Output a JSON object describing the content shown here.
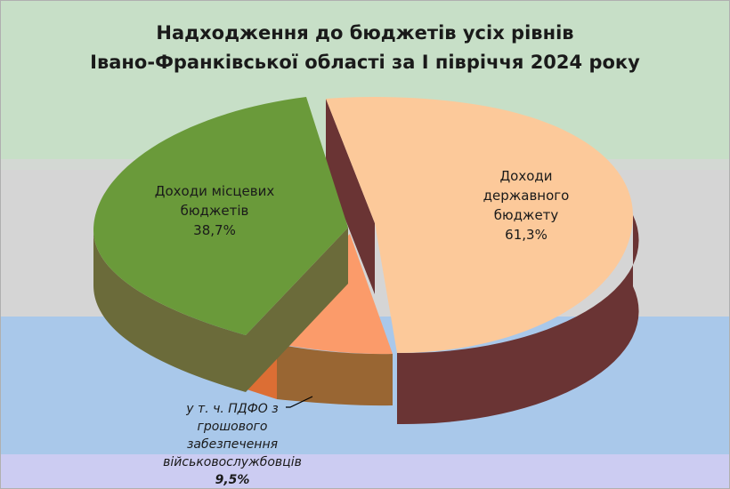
{
  "title": {
    "line1": "Надходження до бюджетів усіх рівнів",
    "line2": "Івано-Франківської області за І півріччя 2024 року"
  },
  "labels": {
    "local": {
      "line1": "Доходи місцевих",
      "line2": "бюджетів",
      "value": "38,7%"
    },
    "state": {
      "line1": "Доходи",
      "line2": "державного",
      "line3": "бюджету",
      "value": "61,3%"
    },
    "pdfo": {
      "line1": "у т. ч. ПДФО з",
      "line2": "грошового",
      "line3": "забезпечення",
      "line4": "військовослужбовців",
      "value": "9,5%"
    }
  },
  "chart_data": {
    "type": "pie",
    "title": "Надходження до бюджетів усіх рівнів Івано-Франківської області за І півріччя 2024 року",
    "slices": [
      {
        "label": "Доходи державного бюджету",
        "value": 61.3,
        "color": "#fcc99a",
        "side_color": "#6a3434"
      },
      {
        "label": "у т. ч. ПДФО з грошового забезпечення військовослужбовців",
        "value": 9.5,
        "color": "#fb9b6a",
        "side_color": "#996633"
      },
      {
        "label": "Доходи місцевих бюджетів",
        "value": 38.7,
        "color": "#6a9a3a",
        "side_color": "#6b6b3a"
      }
    ],
    "legend": "none",
    "style": "3d exploded"
  },
  "colors": {
    "state_top": "#fcc99a",
    "state_side": "#6a3434",
    "pdfo_top": "#fb9b6a",
    "pdfo_side": "#996633",
    "pdfo_side_left": "#dc6e34",
    "local_top": "#6a9a3a",
    "local_side": "#6b6b3a",
    "leader": "#000000"
  }
}
